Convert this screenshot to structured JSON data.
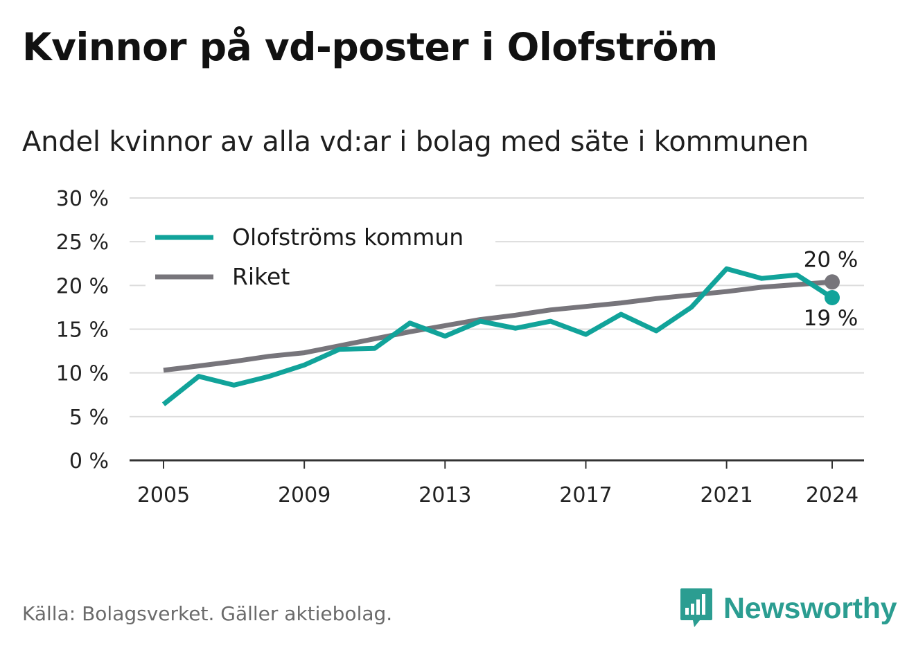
{
  "header": {
    "title": "Kvinnor på vd-poster i Olofström",
    "subtitle": "Andel kvinnor av alla vd:ar i bolag med säte i kommunen"
  },
  "footer": {
    "source": "Källa: Bolagsverket. Gäller aktiebolag.",
    "brand": "Newsworthy"
  },
  "colors": {
    "series_municipality": "#11a39a",
    "series_country": "#77757b",
    "grid": "#dcdcdc",
    "axis": "#333333",
    "brand": "#2b9d91"
  },
  "chart_data": {
    "type": "line",
    "title": "Kvinnor på vd-poster i Olofström",
    "subtitle": "Andel kvinnor av alla vd:ar i bolag med säte i kommunen",
    "xlabel": "",
    "ylabel": "",
    "x": [
      2005,
      2006,
      2007,
      2008,
      2009,
      2010,
      2011,
      2012,
      2013,
      2014,
      2015,
      2016,
      2017,
      2018,
      2019,
      2020,
      2021,
      2022,
      2023,
      2024
    ],
    "xticks": [
      2005,
      2009,
      2013,
      2017,
      2021,
      2024
    ],
    "xtick_labels": [
      "2005",
      "2009",
      "2013",
      "2017",
      "2021",
      "2024"
    ],
    "ylim": [
      0,
      30
    ],
    "yticks": [
      0,
      5,
      10,
      15,
      20,
      25,
      30
    ],
    "ytick_labels": [
      "0 %",
      "5 %",
      "10 %",
      "15 %",
      "20 %",
      "25 %",
      "30 %"
    ],
    "grid": true,
    "legend_position": "top-left",
    "series": [
      {
        "name": "Olofströms kommun",
        "color": "#11a39a",
        "values": [
          6.4,
          9.6,
          8.6,
          9.6,
          10.9,
          12.7,
          12.8,
          15.7,
          14.2,
          15.9,
          15.1,
          15.9,
          14.4,
          16.7,
          14.8,
          17.5,
          21.9,
          20.8,
          21.2,
          18.6
        ],
        "end_label": "19 %"
      },
      {
        "name": "Riket",
        "color": "#77757b",
        "values": [
          10.3,
          10.8,
          11.3,
          11.9,
          12.3,
          13.1,
          13.9,
          14.7,
          15.4,
          16.1,
          16.6,
          17.2,
          17.6,
          18.0,
          18.5,
          18.9,
          19.3,
          19.8,
          20.1,
          20.4
        ],
        "end_label": "20 %"
      }
    ]
  }
}
